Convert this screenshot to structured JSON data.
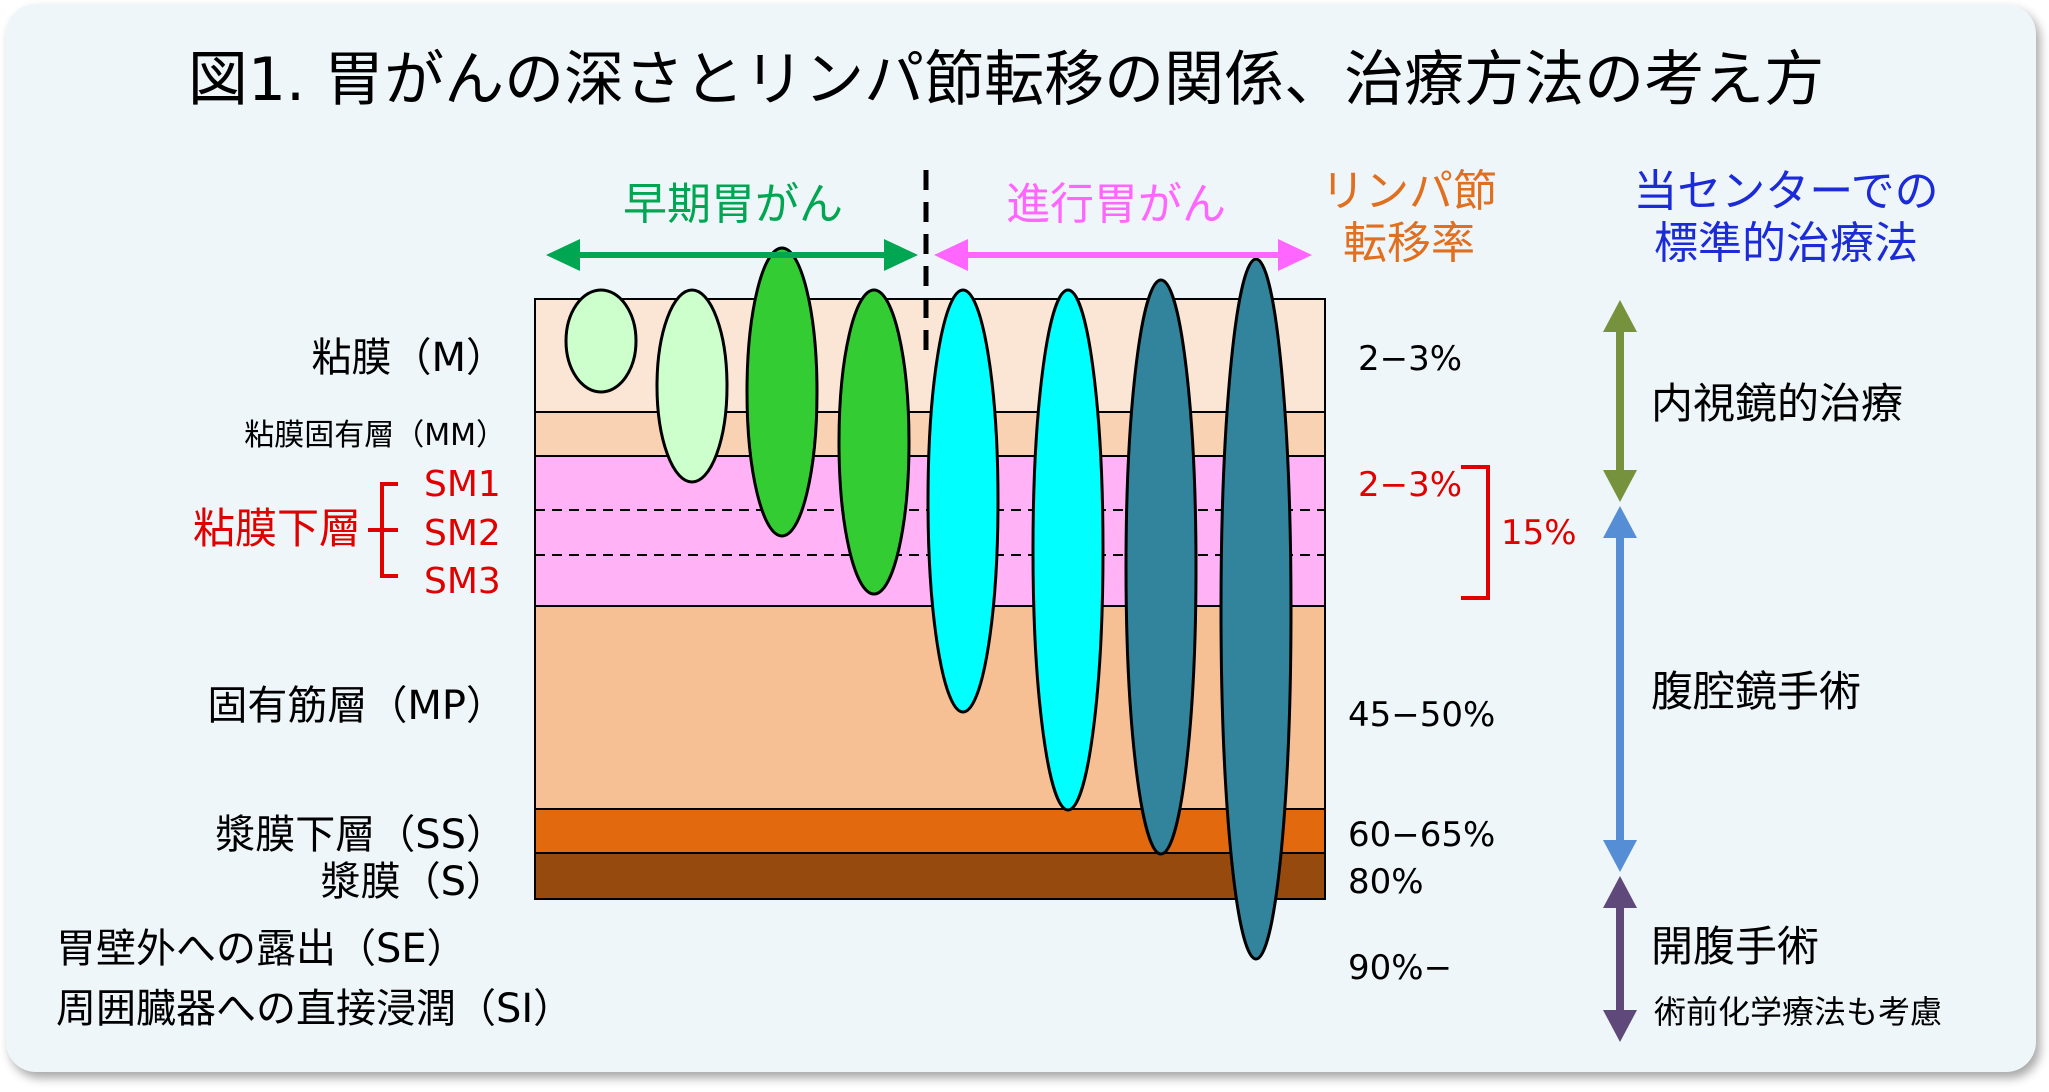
{
  "title": "図1. 胃がんの深さとリンパ節転移の関係、治療方法の考え方",
  "header": {
    "early_label": "早期胃がん",
    "advanced_label": "進行胃がん",
    "lymph_rate_line1": "リンパ節",
    "lymph_rate_line2": "転移率",
    "standard_line1": "当センターでの",
    "standard_line2": "標準的治療法"
  },
  "layers": {
    "m": "粘膜（M）",
    "mm": "粘膜固有層（MM）",
    "submucosa": "粘膜下層",
    "sm1": "SM1",
    "sm2": "SM2",
    "sm3": "SM3",
    "mp": "固有筋層（MP）",
    "ss": "漿膜下層（SS）",
    "s": "漿膜（S）",
    "se": "胃壁外への露出（SE）",
    "si": "周囲臓器への直接浸潤（SI）"
  },
  "rates": {
    "m": "2−3%",
    "sm1": "2−3%",
    "sm_total": "15%",
    "mp": "45−50%",
    "ss": "60−65%",
    "s": "80%",
    "se_si": "90%−"
  },
  "treatments": {
    "endoscopic": "内視鏡的治療",
    "laparoscopic": "腹腔鏡手術",
    "open": "開腹手術",
    "open_note": "術前化学療法も考慮"
  },
  "colors": {
    "background": "#eef6f9",
    "layer_m": "#fbe6d6",
    "layer_mm": "#f9d2b4",
    "layer_sm": "#ffb3f6",
    "layer_mp": "#f7c094",
    "layer_ss": "#e2690e",
    "layer_s": "#964a0e",
    "early_green": "#00a651",
    "advanced_pink": "#ff66ff",
    "lymph_orange": "#e07020",
    "standard_blue": "#1c2bd8",
    "red": "#e00000",
    "tumor_light": "#ccffcc",
    "tumor_green": "#33cc33",
    "tumor_cyan": "#00ffff",
    "tumor_teal": "#31849b",
    "arrow_olive": "#76923c",
    "arrow_blue": "#558ed5",
    "arrow_purple": "#5f497a"
  }
}
